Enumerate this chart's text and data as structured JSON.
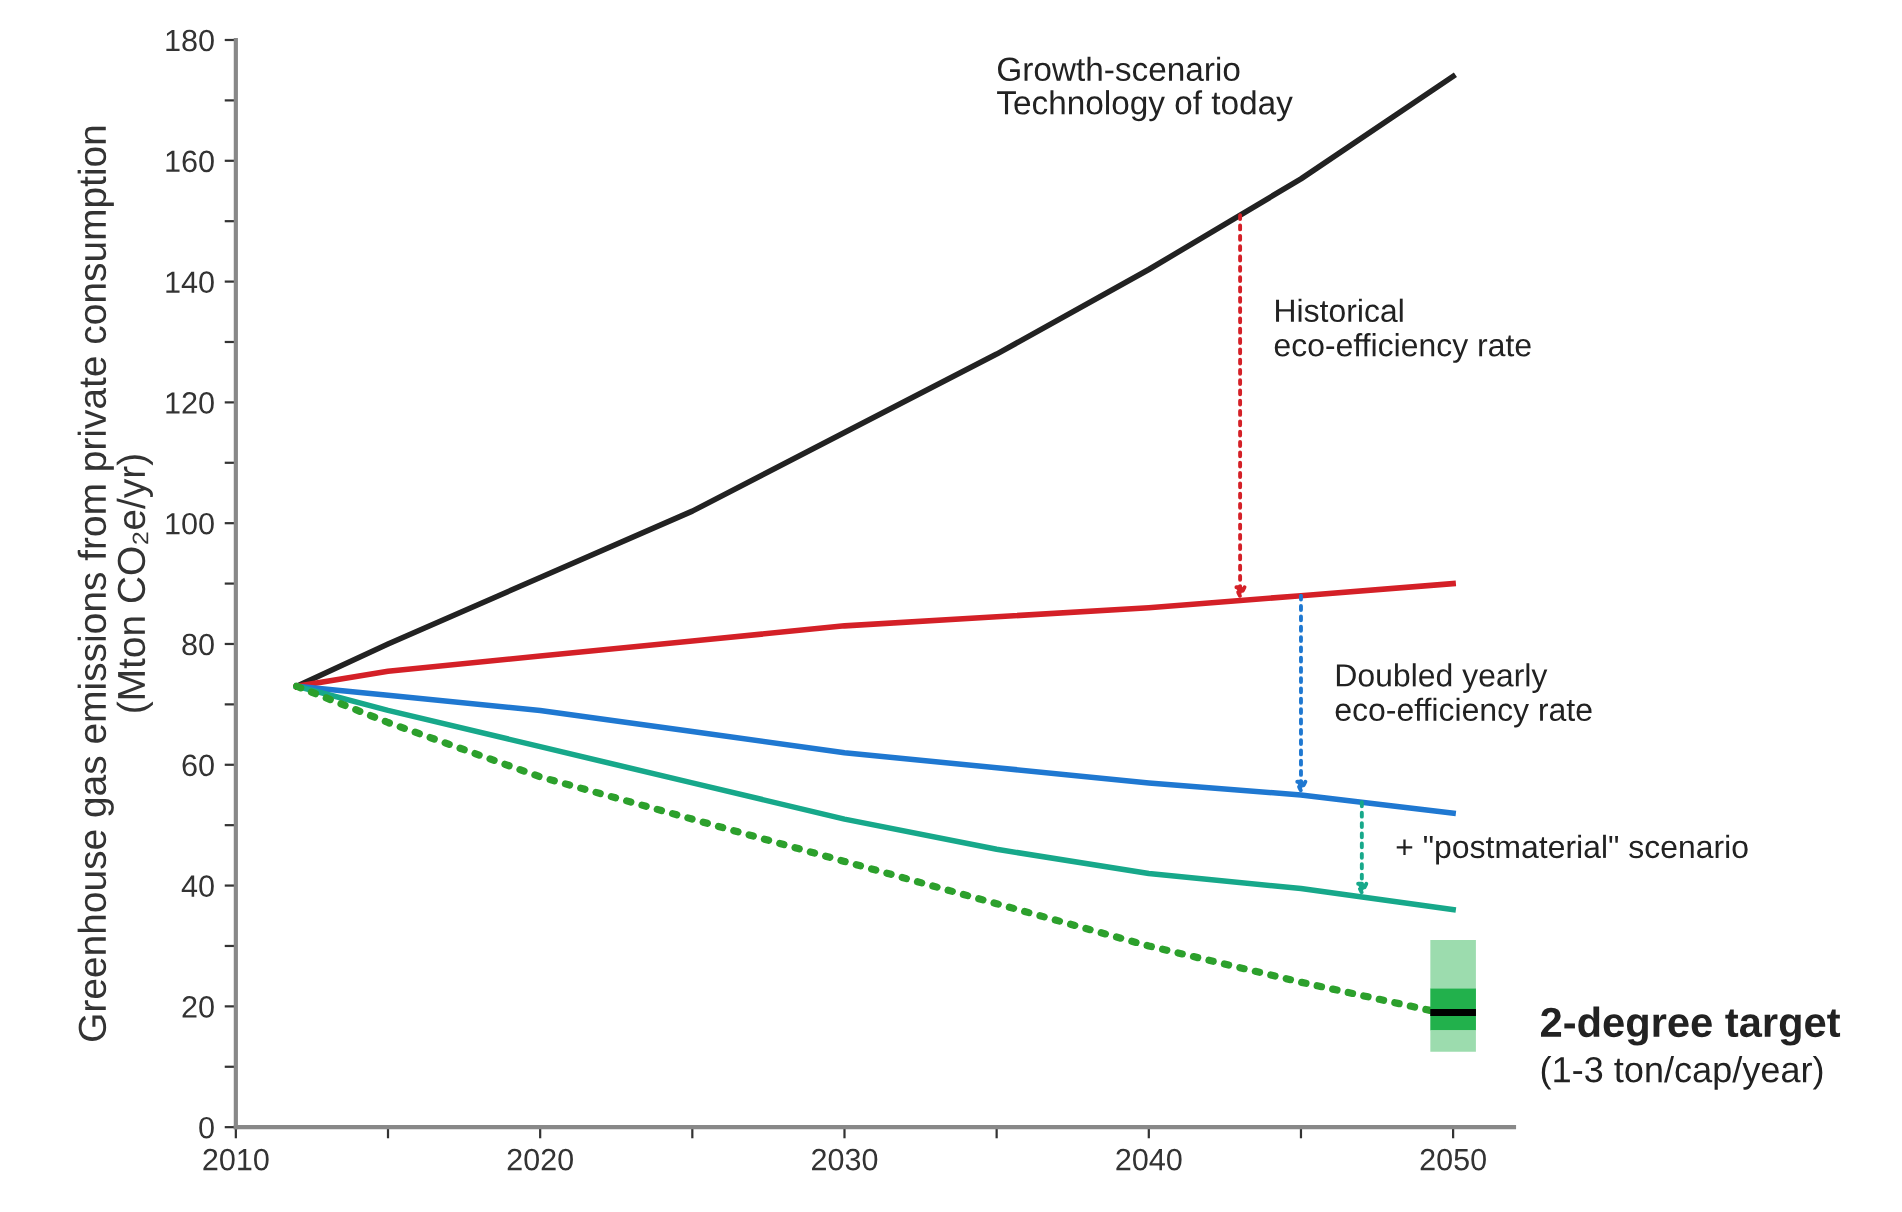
{
  "chart_data": {
    "type": "line",
    "ylabel": "Greenhouse gas emissions from private consumption\n(Mton CO₂e/yr)",
    "xlim": [
      2010,
      2052
    ],
    "ylim": [
      0,
      180
    ],
    "xticks": [
      2010,
      {
        "value": 2015,
        "label": null
      },
      2020,
      {
        "value": 2025,
        "label": null
      },
      2030,
      {
        "value": 2035,
        "label": null
      },
      2040,
      {
        "value": 2045,
        "label": null
      },
      2050
    ],
    "yticks": [
      0,
      {
        "value": 10,
        "label": null
      },
      20,
      {
        "value": 30,
        "label": null
      },
      40,
      {
        "value": 50,
        "label": null
      },
      60,
      {
        "value": 70,
        "label": null
      },
      80,
      {
        "value": 90,
        "label": null
      },
      100,
      {
        "value": 110,
        "label": null
      },
      120,
      {
        "value": 130,
        "label": null
      },
      140,
      {
        "value": 150,
        "label": null
      },
      160,
      {
        "value": 170,
        "label": null
      },
      180
    ],
    "grid": false,
    "legend": false,
    "x": [
      2012,
      2015,
      2020,
      2025,
      2030,
      2035,
      2040,
      2045,
      2050
    ],
    "series": [
      {
        "color": "#222222",
        "line_style": "solid",
        "values": [
          73,
          80,
          91,
          102,
          115,
          128,
          142,
          157,
          174
        ]
      },
      {
        "color": "#d42027",
        "line_style": "solid",
        "values": [
          73,
          75.5,
          78,
          80.5,
          83,
          84.5,
          86,
          88,
          90
        ]
      },
      {
        "color": "#1f78d1",
        "line_style": "solid",
        "values": [
          73,
          71.5,
          69,
          65.5,
          62,
          59.5,
          57,
          55,
          52
        ]
      },
      {
        "color": "#17a88a",
        "line_style": "solid",
        "values": [
          73,
          69,
          63,
          57,
          51,
          46,
          42,
          39.5,
          36
        ]
      },
      {
        "color": "#2ca02c",
        "line_style": "dotted",
        "values": [
          73,
          67,
          58,
          51,
          44,
          37,
          30,
          24,
          18.5
        ]
      },
      {
        "type": "box",
        "x": [
          2050
        ],
        "color": "#22b14c",
        "boxes": [
          {
            "low": 12.5,
            "q1": 16,
            "median": 19,
            "q3": 23,
            "high": 31
          }
        ]
      }
    ],
    "annotations": [
      "Growth-scenario\nTechnology of today",
      {
        "text": "Historical\neco-efficiency rate",
        "x": 2043,
        "y": 151
      },
      {
        "text": "Doubled yearly\neco-efficiency rate",
        "x": 2045,
        "y": 88
      },
      {
        "text": "+ \"postmaterial\" scenario",
        "x": 2047,
        "y": 53.8
      },
      "2-degree target",
      "(1-3 ton/cap/year)"
    ]
  }
}
